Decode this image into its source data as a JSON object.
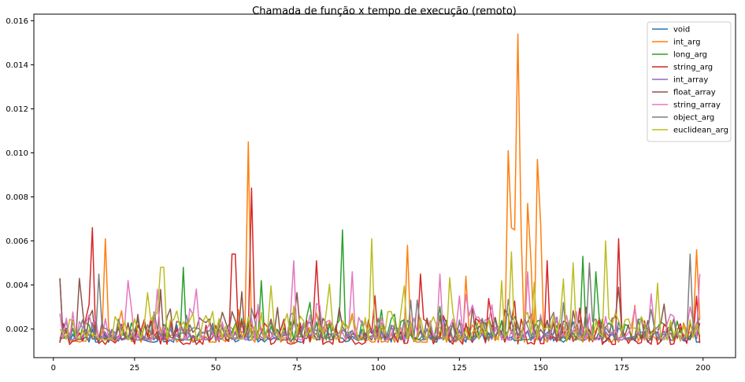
{
  "chart_data": {
    "type": "line",
    "title": "Chamada de função x tempo de execução (remoto)",
    "xlabel": "",
    "ylabel": "",
    "xlim": [
      -6,
      210
    ],
    "ylim": [
      0.0007,
      0.0163
    ],
    "xticks": [
      0,
      25,
      50,
      75,
      100,
      125,
      150,
      175,
      200
    ],
    "yticks": [
      0.002,
      0.004,
      0.006,
      0.008,
      0.01,
      0.012,
      0.014,
      0.016
    ],
    "ytick_labels": [
      "0.002",
      "0.004",
      "0.006",
      "0.008",
      "0.010",
      "0.012",
      "0.014",
      "0.016"
    ],
    "grid": false,
    "legend_position": "top-right",
    "x_start": 2,
    "x_end": 199,
    "series": [
      {
        "name": "void",
        "color": "#1f77b4",
        "base": 0.0017,
        "spread": 0.0006,
        "spikes": [],
        "seed": 11
      },
      {
        "name": "int_arg",
        "color": "#ff7f0e",
        "base": 0.0017,
        "spread": 0.0009,
        "spikes": [
          [
            16,
            0.0061
          ],
          [
            60,
            0.0105
          ],
          [
            109,
            0.0058
          ],
          [
            127,
            0.0044
          ],
          [
            140,
            0.0101
          ],
          [
            141,
            0.0066
          ],
          [
            142,
            0.0065
          ],
          [
            143,
            0.0154
          ],
          [
            144,
            0.0064
          ],
          [
            146,
            0.0077
          ],
          [
            147,
            0.0052
          ],
          [
            149,
            0.0097
          ],
          [
            150,
            0.0068
          ],
          [
            198,
            0.0056
          ]
        ],
        "seed": 23
      },
      {
        "name": "long_arg",
        "color": "#2ca02c",
        "base": 0.0018,
        "spread": 0.001,
        "spikes": [
          [
            40,
            0.0048
          ],
          [
            64,
            0.0042
          ],
          [
            89,
            0.0065
          ],
          [
            163,
            0.0053
          ],
          [
            167,
            0.0046
          ]
        ],
        "seed": 37
      },
      {
        "name": "string_arg",
        "color": "#d62728",
        "base": 0.0016,
        "spread": 0.0012,
        "spikes": [
          [
            12,
            0.0066
          ],
          [
            55,
            0.0054
          ],
          [
            56,
            0.0054
          ],
          [
            61,
            0.0084
          ],
          [
            81,
            0.0051
          ],
          [
            113,
            0.0045
          ],
          [
            152,
            0.0051
          ],
          [
            174,
            0.0061
          ]
        ],
        "seed": 41
      },
      {
        "name": "int_array",
        "color": "#9467bd",
        "base": 0.0018,
        "spread": 0.0005,
        "spikes": [
          [
            2,
            0.0043
          ]
        ],
        "seed": 53
      },
      {
        "name": "float_array",
        "color": "#8c564b",
        "base": 0.0018,
        "spread": 0.0011,
        "spikes": [
          [
            2,
            0.0043
          ],
          [
            8,
            0.0043
          ],
          [
            33,
            0.0038
          ],
          [
            58,
            0.0037
          ],
          [
            174,
            0.0039
          ]
        ],
        "seed": 67
      },
      {
        "name": "string_array",
        "color": "#e377c2",
        "base": 0.0018,
        "spread": 0.0012,
        "spikes": [
          [
            2,
            0.0027
          ],
          [
            23,
            0.0042
          ],
          [
            74,
            0.0051
          ],
          [
            92,
            0.0046
          ],
          [
            119,
            0.0045
          ],
          [
            146,
            0.0046
          ],
          [
            184,
            0.0036
          ],
          [
            199,
            0.0045
          ]
        ],
        "seed": 79
      },
      {
        "name": "object_arg",
        "color": "#7f7f7f",
        "base": 0.0018,
        "spread": 0.001,
        "spikes": [
          [
            14,
            0.0045
          ],
          [
            165,
            0.005
          ],
          [
            196,
            0.0054
          ]
        ],
        "seed": 83
      },
      {
        "name": "euclidean_arg",
        "color": "#bcbd22",
        "base": 0.0018,
        "spread": 0.0013,
        "spikes": [
          [
            33,
            0.0048
          ],
          [
            34,
            0.0048
          ],
          [
            98,
            0.0061
          ],
          [
            138,
            0.0042
          ],
          [
            141,
            0.0055
          ],
          [
            160,
            0.005
          ],
          [
            170,
            0.006
          ]
        ],
        "seed": 97
      }
    ]
  }
}
